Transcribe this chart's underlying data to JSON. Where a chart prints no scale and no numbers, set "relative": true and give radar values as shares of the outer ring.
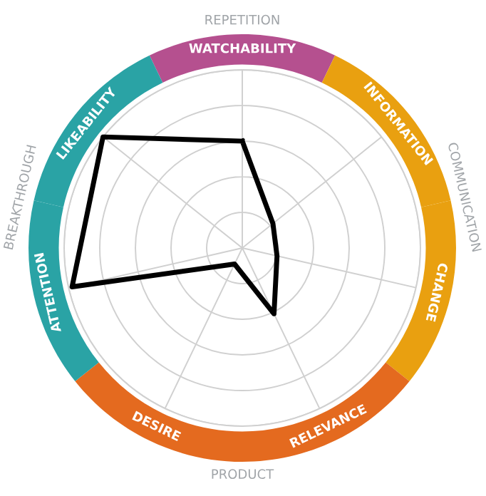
{
  "chart_data": {
    "type": "radar",
    "relative": true,
    "grid": true,
    "categories": [
      "WATCHABILITY",
      "INFORMATION",
      "CHANGE",
      "RELEVANCE",
      "DESIRE",
      "ATTENTION",
      "LIKEABILITY"
    ],
    "colors": [
      "#b5508f",
      "#e9a010",
      "#e9a010",
      "#e46a1f",
      "#e46a1f",
      "#2aa3a5",
      "#2aa3a5"
    ],
    "series": [
      {
        "color": "#000000",
        "values": [
          0.6,
          0.22,
          0.2,
          0.41,
          0.1,
          0.98,
          1.0
        ]
      }
    ],
    "annotations": [
      "REPETITION",
      "COMMUNICATION",
      "PRODUCT",
      "BREAKTHROUGH"
    ]
  }
}
